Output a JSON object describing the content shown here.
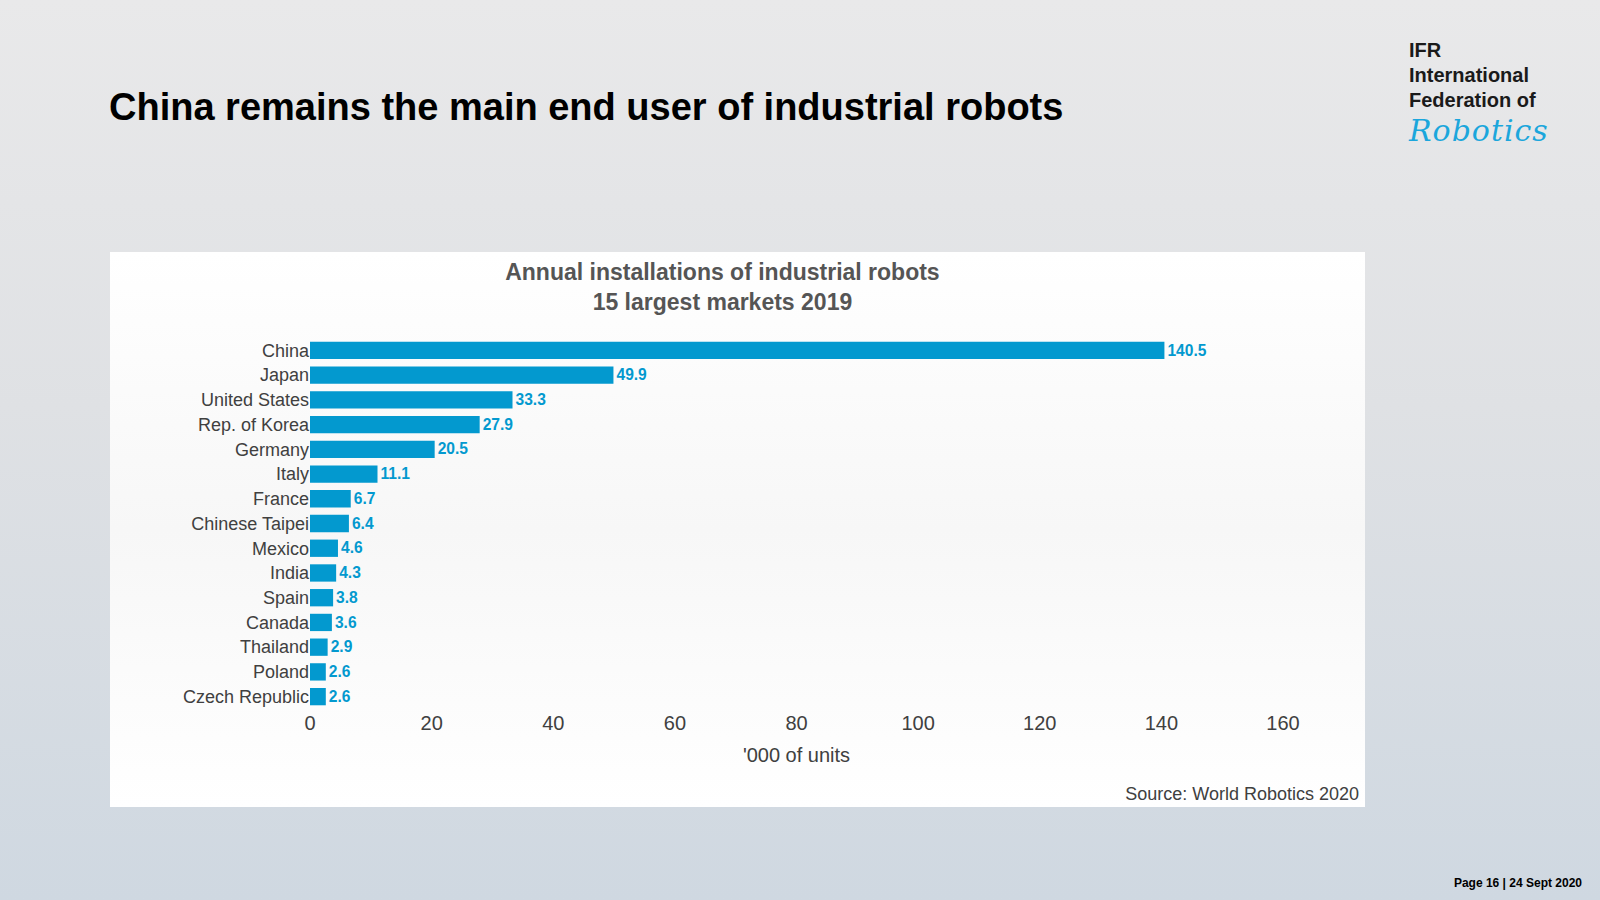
{
  "slide": {
    "headline": "China remains the main end user of industrial robots",
    "logo": {
      "lines": [
        "IFR",
        "International",
        "Federation of"
      ],
      "script": "Robotics"
    },
    "footer": "Page 16 | 24 Sept 2020"
  },
  "chart_data": {
    "type": "bar",
    "orientation": "horizontal",
    "title": "Annual installations of industrial robots",
    "subtitle": "15 largest markets 2019",
    "x_label": "'000 of units",
    "source": "Source: World Robotics 2020",
    "categories": [
      "China",
      "Japan",
      "United States",
      "Rep. of Korea",
      "Germany",
      "Italy",
      "France",
      "Chinese Taipei",
      "Mexico",
      "India",
      "Spain",
      "Canada",
      "Thailand",
      "Poland",
      "Czech Republic"
    ],
    "values": [
      140.5,
      49.9,
      33.3,
      27.9,
      20.5,
      11.1,
      6.7,
      6.4,
      4.6,
      4.3,
      3.8,
      3.6,
      2.9,
      2.6,
      2.6
    ],
    "color": "#0399cf",
    "xlim": [
      0,
      160
    ],
    "xticks": [
      0,
      20,
      40,
      60,
      80,
      100,
      120,
      140,
      160
    ],
    "grid": false,
    "data_labels": true
  }
}
